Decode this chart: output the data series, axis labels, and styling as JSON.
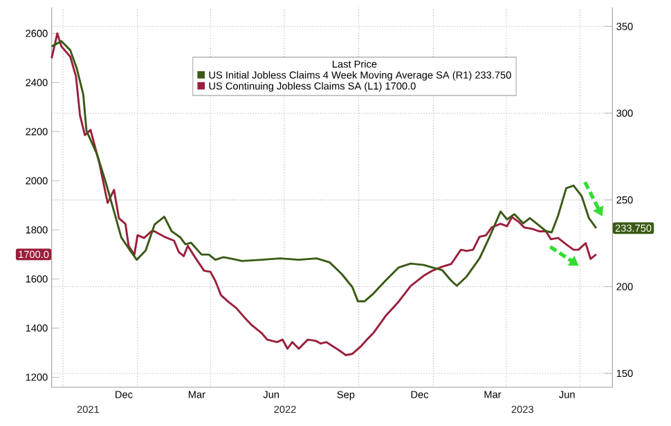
{
  "chart_data": {
    "type": "line",
    "legend_title": "Last Price",
    "xlim": [
      "2021-09-17",
      "2023-08-10"
    ],
    "xticks": [
      {
        "value": "2021-10-01",
        "label": null
      },
      {
        "value": "2021-12-15",
        "label": "Dec"
      },
      {
        "value": "2022-01-01",
        "label": null
      },
      {
        "value": "2022-03-15",
        "label": "Mar"
      },
      {
        "value": "2022-04-01",
        "label": null
      },
      {
        "value": "2022-06-15",
        "label": "Jun"
      },
      {
        "value": "2022-07-01",
        "label": null
      },
      {
        "value": "2022-09-15",
        "label": "Sep"
      },
      {
        "value": "2022-10-01",
        "label": null
      },
      {
        "value": "2022-12-15",
        "label": "Dec"
      },
      {
        "value": "2023-01-01",
        "label": null
      },
      {
        "value": "2023-03-15",
        "label": "Mar"
      },
      {
        "value": "2023-04-01",
        "label": null
      },
      {
        "value": "2023-06-15",
        "label": "Jun"
      },
      {
        "value": "2023-07-01",
        "label": null
      }
    ],
    "x2lim": [
      "2021-09-17",
      "2023-08-10"
    ],
    "x2ticks": [
      {
        "value": "2021-11-01",
        "label": "2021"
      },
      {
        "value": "2022-07-02",
        "label": "2022"
      },
      {
        "value": "2023-04-21",
        "label": "2023"
      }
    ],
    "ylim": [
      1159,
      2706
    ],
    "yticks": [
      1200,
      1400,
      1600,
      1800,
      2000,
      2200,
      2400,
      2600
    ],
    "y2lim": [
      142,
      361
    ],
    "y2ticks": [
      150,
      200,
      250,
      300,
      350
    ],
    "grid": true,
    "legend": "top",
    "marker": "none",
    "line_style": "solid",
    "series": [
      {
        "name": "US Initial Jobless Claims 4 Week Moving Average SA  (R1)  233.750",
        "color": "#3a5a16",
        "axis": "y2",
        "x": [
          "2021-09-17",
          "2021-09-29",
          "2021-10-10",
          "2021-10-18",
          "2021-10-26",
          "2021-10-30",
          "2021-11-12",
          "2021-11-22",
          "2021-12-03",
          "2021-12-12",
          "2021-12-23",
          "2021-12-31",
          "2022-01-11",
          "2022-01-22",
          "2022-02-03",
          "2022-02-12",
          "2022-02-23",
          "2022-03-01",
          "2022-03-08",
          "2022-03-21",
          "2022-03-30",
          "2022-04-07",
          "2022-04-17",
          "2022-04-25",
          "2022-05-10",
          "2022-06-03",
          "2022-06-26",
          "2022-07-19",
          "2022-08-10",
          "2022-08-26",
          "2022-09-10",
          "2022-09-23",
          "2022-09-30",
          "2022-10-08",
          "2022-10-19",
          "2022-11-03",
          "2022-11-19",
          "2022-12-04",
          "2022-12-20",
          "2022-12-31",
          "2023-01-12",
          "2023-01-23",
          "2023-01-30",
          "2023-02-11",
          "2023-02-27",
          "2023-03-11",
          "2023-03-25",
          "2023-04-02",
          "2023-04-11",
          "2023-04-22",
          "2023-04-30",
          "2023-05-10",
          "2023-05-20",
          "2023-05-27",
          "2023-06-04",
          "2023-06-14",
          "2023-06-23",
          "2023-07-03",
          "2023-07-12",
          "2023-07-21"
        ],
        "values": [
          338.5,
          341.5,
          336.3,
          325.8,
          310.8,
          289.8,
          276.3,
          261.3,
          243.3,
          228.3,
          220.8,
          215.5,
          220.8,
          235.8,
          240.3,
          232.0,
          228.3,
          224.5,
          225.3,
          218.5,
          218.5,
          215.5,
          217.0,
          216.3,
          214.8,
          215.5,
          216.3,
          215.5,
          216.3,
          214.0,
          207.3,
          199.8,
          191.5,
          191.5,
          196.0,
          203.5,
          211.0,
          213.3,
          212.5,
          211.0,
          209.5,
          203.5,
          200.5,
          205.8,
          216.3,
          228.3,
          243.3,
          238.8,
          241.8,
          236.5,
          239.5,
          235.8,
          232.0,
          231.3,
          241.0,
          256.8,
          258.3,
          252.3,
          239.5,
          233.75
        ]
      },
      {
        "name": "US Continuing Jobless Claims SA  (L1)  1700.0",
        "color": "#9a1f3c",
        "x": [
          "2021-09-17",
          "2021-09-24",
          "2021-09-29",
          "2021-10-10",
          "2021-10-17",
          "2021-10-22",
          "2021-10-28",
          "2021-11-04",
          "2021-11-15",
          "2021-11-25",
          "2021-12-03",
          "2021-12-09",
          "2021-12-17",
          "2021-12-21",
          "2021-12-28",
          "2022-01-01",
          "2022-01-09",
          "2022-01-18",
          "2022-01-22",
          "2022-02-03",
          "2022-02-15",
          "2022-02-21",
          "2022-02-27",
          "2022-03-04",
          "2022-03-13",
          "2022-03-24",
          "2022-04-01",
          "2022-04-07",
          "2022-04-14",
          "2022-04-23",
          "2022-05-03",
          "2022-05-13",
          "2022-05-22",
          "2022-06-03",
          "2022-06-10",
          "2022-06-22",
          "2022-06-29",
          "2022-07-05",
          "2022-07-11",
          "2022-07-19",
          "2022-07-30",
          "2022-08-09",
          "2022-08-15",
          "2022-08-22",
          "2022-09-06",
          "2022-09-15",
          "2022-09-23",
          "2022-10-04",
          "2022-10-11",
          "2022-10-19",
          "2022-11-03",
          "2022-11-19",
          "2022-12-04",
          "2022-12-20",
          "2022-12-31",
          "2023-01-12",
          "2023-01-23",
          "2023-02-04",
          "2023-02-11",
          "2023-02-19",
          "2023-02-27",
          "2023-03-07",
          "2023-03-14",
          "2023-03-25",
          "2023-04-02",
          "2023-04-08",
          "2023-04-17",
          "2023-04-23",
          "2023-05-03",
          "2023-05-12",
          "2023-05-20",
          "2023-05-26",
          "2023-06-04",
          "2023-06-14",
          "2023-06-23",
          "2023-06-29",
          "2023-07-08",
          "2023-07-14",
          "2023-07-21"
        ],
        "values": [
          2499,
          2600,
          2547,
          2505,
          2425,
          2266,
          2186,
          2207,
          2070,
          1910,
          1963,
          1847,
          1825,
          1735,
          1698,
          1778,
          1767,
          1794,
          1794,
          1772,
          1756,
          1709,
          1693,
          1735,
          1688,
          1634,
          1629,
          1592,
          1534,
          1507,
          1481,
          1443,
          1412,
          1380,
          1353,
          1343,
          1353,
          1316,
          1343,
          1316,
          1353,
          1348,
          1337,
          1343,
          1311,
          1290,
          1295,
          1327,
          1353,
          1380,
          1449,
          1507,
          1571,
          1613,
          1634,
          1650,
          1661,
          1719,
          1714,
          1719,
          1772,
          1778,
          1810,
          1825,
          1815,
          1852,
          1831,
          1810,
          1804,
          1794,
          1794,
          1762,
          1767,
          1741,
          1719,
          1719,
          1746,
          1682,
          1700
        ]
      }
    ],
    "annotations": [
      "233.750",
      "1700.0"
    ]
  }
}
